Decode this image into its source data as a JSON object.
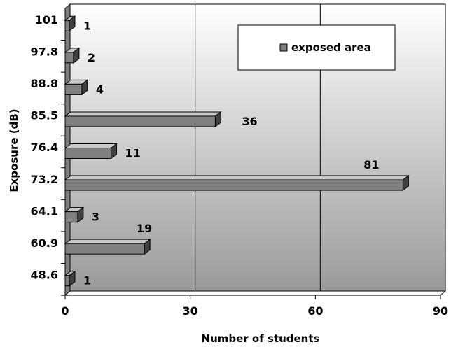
{
  "chart_data": {
    "type": "bar",
    "orientation": "horizontal",
    "style": "3d",
    "categories": [
      "48.6",
      "60.9",
      "64.1",
      "73.2",
      "76.4",
      "85.5",
      "88.8",
      "97.8",
      "101"
    ],
    "series": [
      {
        "name": "exposed area",
        "values": [
          1,
          19,
          3,
          81,
          11,
          36,
          4,
          2,
          1
        ],
        "color": "#808080"
      }
    ],
    "data_labels": [
      "1",
      "19",
      "3",
      "81",
      "11",
      "36",
      "4",
      "2",
      "1"
    ],
    "xlabel": "Number of students",
    "ylabel": "Exposure (dB)",
    "xlim": [
      0,
      90
    ],
    "xticks": [
      "0",
      "30",
      "60",
      "90"
    ],
    "grid": "vertical",
    "legend": {
      "position": "top-right"
    },
    "colors": {
      "plot_bg_top": "#ffffff",
      "plot_bg_bottom": "#9a9a9a",
      "bar_face": "#808080",
      "bar_top": "#c8c8c8",
      "bar_side": "#404040",
      "wall": "#7f7f7f"
    }
  }
}
